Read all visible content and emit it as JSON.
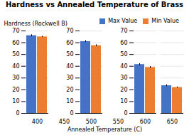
{
  "chart_data": {
    "type": "bar",
    "title": "Hardness vs Annealed Temperature of Brass",
    "xlabel": "Annealed Temperature (C)",
    "ylabel": "Hardness (Rockwell B)",
    "categories": [
      400,
      450,
      500,
      550,
      600,
      650
    ],
    "series": [
      {
        "name": "Max Value",
        "color": "#4472C4",
        "values": [
          66,
          null,
          61,
          null,
          41.5,
          23.5
        ],
        "errors": [
          0.8,
          null,
          0.8,
          null,
          0.8,
          0.8
        ]
      },
      {
        "name": "Min Value",
        "color": "#ED7D31",
        "values": [
          65,
          null,
          57.5,
          null,
          39,
          22
        ],
        "errors": [
          0.5,
          null,
          0.8,
          null,
          0.8,
          0.5
        ]
      }
    ],
    "ylim": [
      0,
      70
    ],
    "yticks": [
      0,
      10,
      20,
      30,
      40,
      50,
      60,
      70
    ],
    "grid": true,
    "legend": "upper right"
  }
}
